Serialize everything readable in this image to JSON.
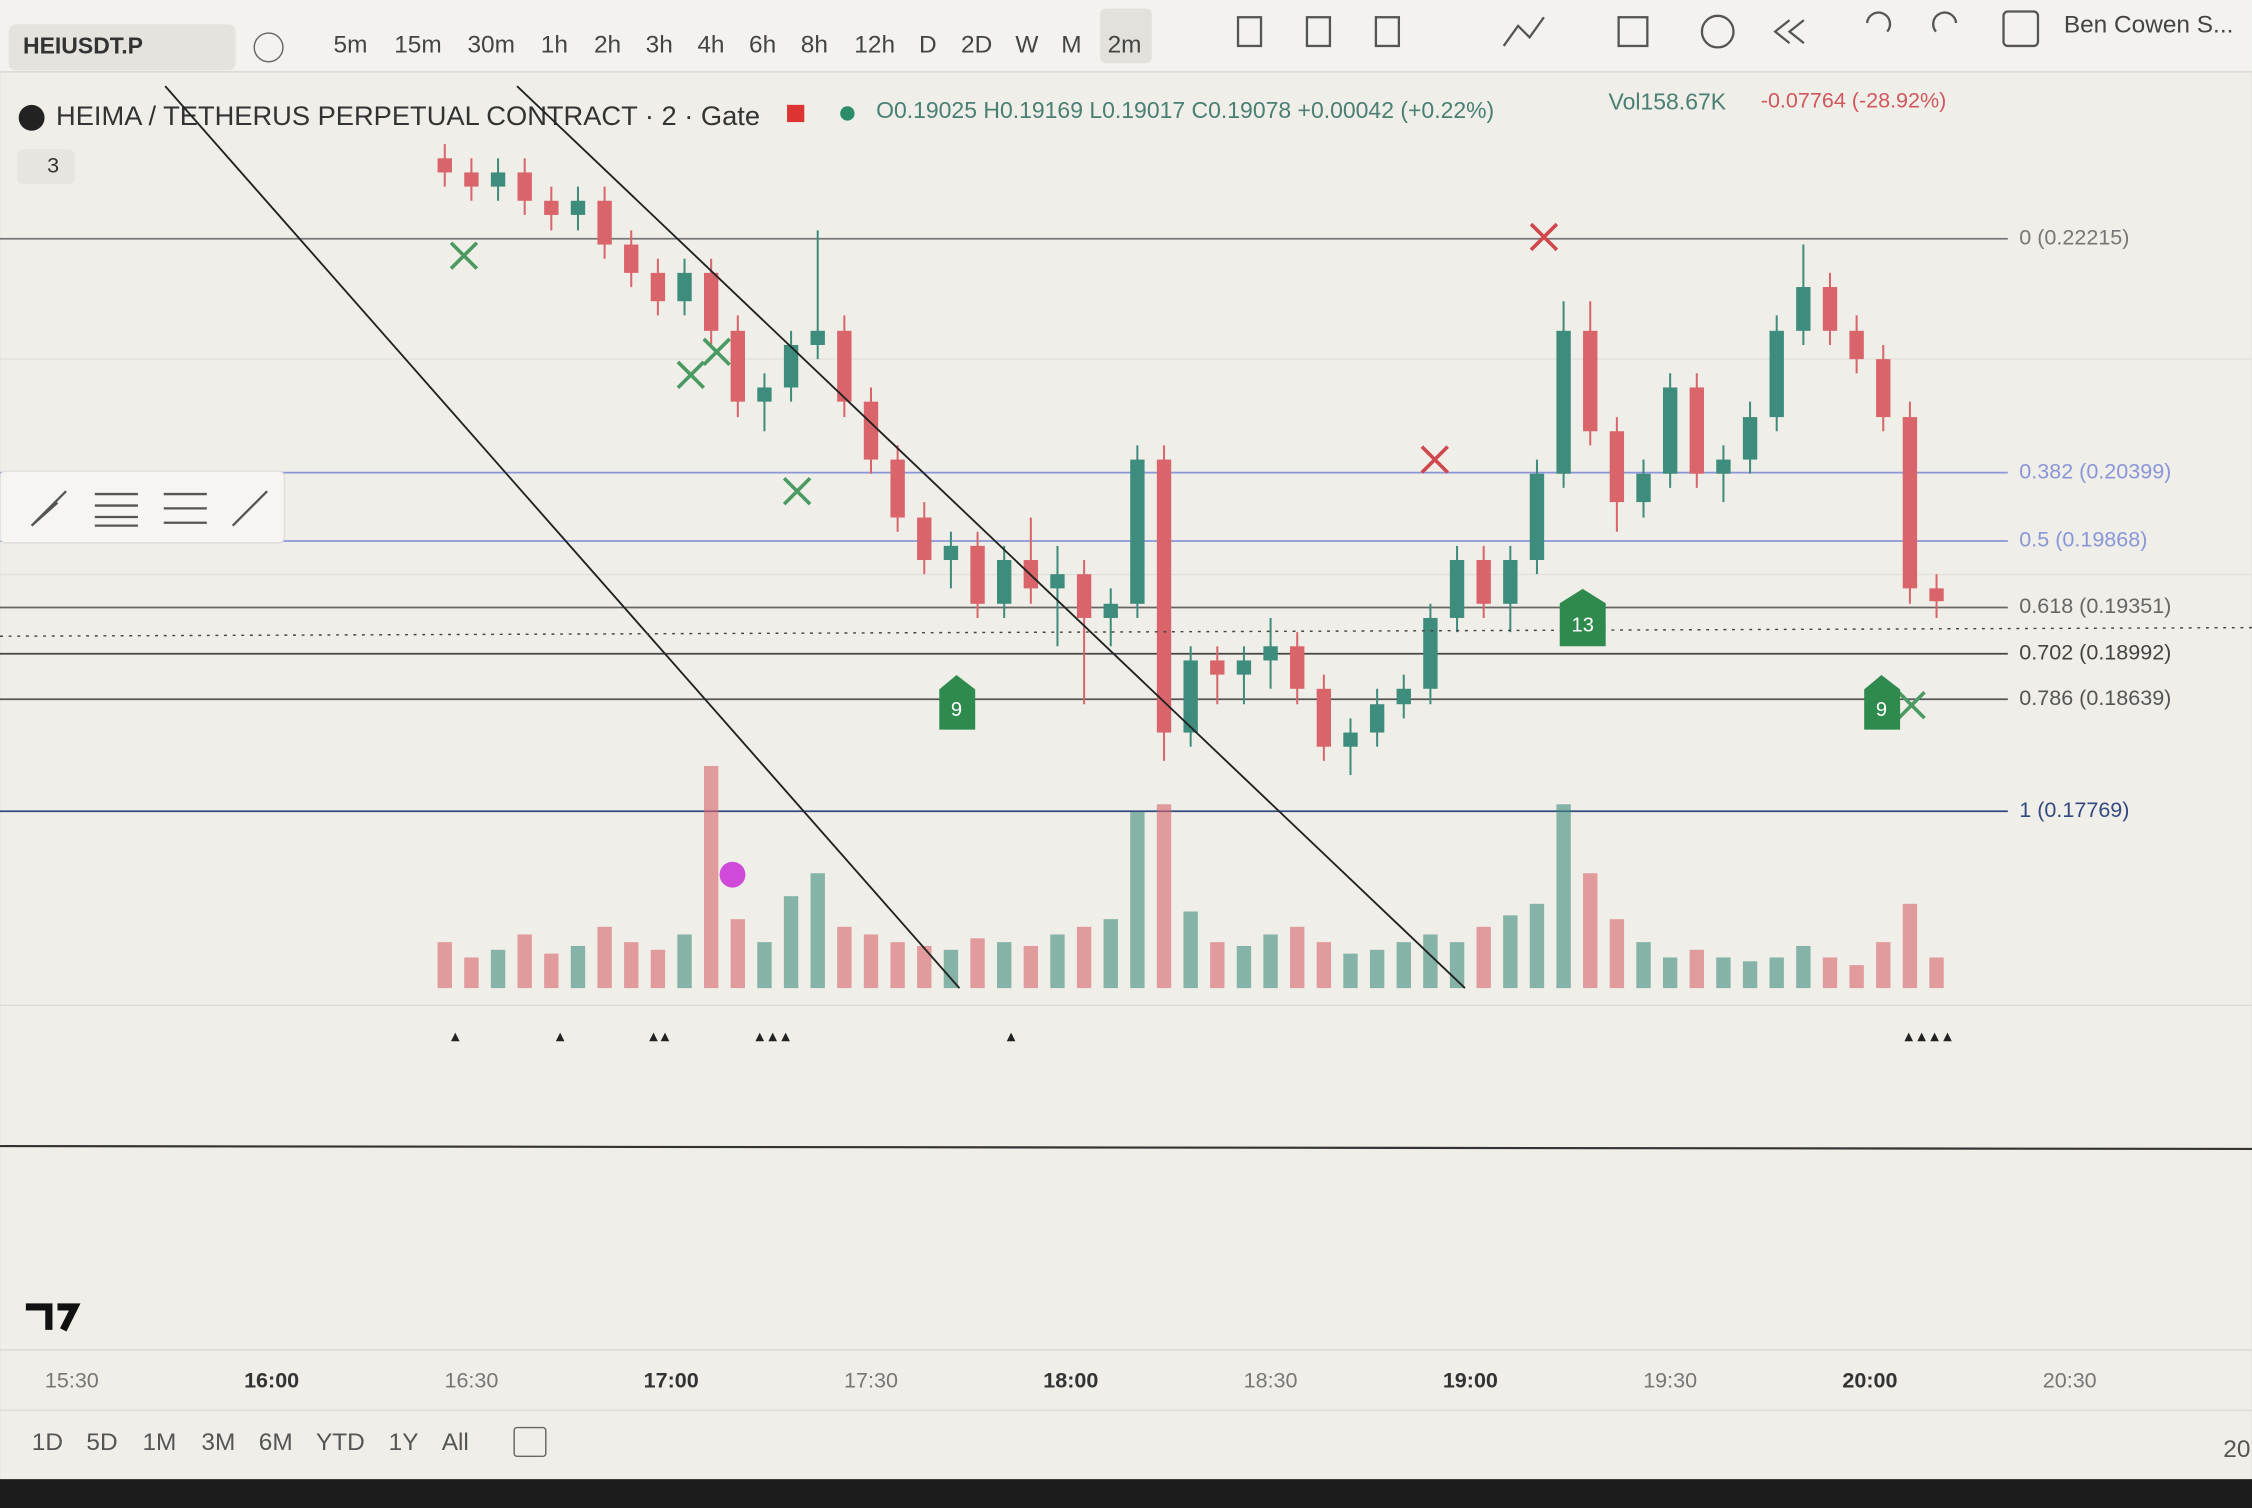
{
  "toolbar": {
    "symbol": "HEIUSDT.P",
    "intervals": [
      "5m",
      "15m",
      "30m",
      "1h",
      "2h",
      "3h",
      "4h",
      "6h",
      "8h",
      "12h",
      "D",
      "2D",
      "W",
      "M",
      "2m"
    ],
    "user": "Ben Cowen S..."
  },
  "legend": {
    "title": "HEIMA / TETHERUS PERPETUAL CONTRACT · 2 · Gate",
    "ohlc": "O0.19025 H0.19169 L0.19017 C0.19078 +0.00042 (+0.22%)",
    "volume": "Vol158.67K",
    "change": "-0.07764 (-28.92%)",
    "collapsed": "3"
  },
  "markers": [
    "9",
    "13",
    "9"
  ],
  "price_chart": {
    "times": [
      "16:26",
      "16:30",
      "16:34",
      "16:38",
      "16:42",
      "16:46",
      "16:50",
      "16:54",
      "16:58",
      "17:02",
      "17:06",
      "17:10",
      "17:14",
      "17:18",
      "17:22",
      "17:26",
      "17:30",
      "17:34",
      "17:38",
      "17:42",
      "17:46",
      "17:50",
      "17:54",
      "17:58",
      "18:02",
      "18:06",
      "18:10",
      "18:14",
      "18:18",
      "18:22",
      "18:26",
      "18:30",
      "18:34",
      "18:38",
      "18:42",
      "18:46",
      "18:50",
      "18:54",
      "18:58",
      "19:02",
      "19:06",
      "19:10",
      "19:14",
      "19:18",
      "19:22",
      "19:26",
      "19:30",
      "19:34",
      "19:38",
      "19:42",
      "19:46",
      "19:50",
      "19:54",
      "19:58",
      "20:02",
      "20:06",
      "20:10"
    ],
    "open": [
      0.2284,
      0.2273,
      0.2262,
      0.2273,
      0.2251,
      0.224,
      0.2251,
      0.2217,
      0.2195,
      0.2173,
      0.2195,
      0.215,
      0.2095,
      0.2106,
      0.2139,
      0.215,
      0.2095,
      0.205,
      0.2005,
      0.1972,
      0.1983,
      0.1938,
      0.1972,
      0.195,
      0.1961,
      0.1927,
      0.1938,
      0.205,
      0.1838,
      0.1894,
      0.1883,
      0.1894,
      0.1905,
      0.1872,
      0.1827,
      0.1838,
      0.186,
      0.1872,
      0.1927,
      0.1972,
      0.1938,
      0.1972,
      0.2039,
      0.215,
      0.2072,
      0.2017,
      0.2039,
      0.2106,
      0.2039,
      0.205,
      0.2083,
      0.215,
      0.2184,
      0.215,
      0.2128,
      0.2083,
      0.195
    ],
    "high": [
      0.2295,
      0.2284,
      0.2284,
      0.2284,
      0.2262,
      0.2262,
      0.2262,
      0.2228,
      0.2206,
      0.2206,
      0.2206,
      0.2162,
      0.2117,
      0.215,
      0.2228,
      0.2162,
      0.2106,
      0.2061,
      0.2017,
      0.1994,
      0.1994,
      0.1983,
      0.2005,
      0.1983,
      0.1972,
      0.195,
      0.2061,
      0.2061,
      0.1905,
      0.1905,
      0.1905,
      0.1927,
      0.1916,
      0.1883,
      0.1849,
      0.1872,
      0.1883,
      0.1938,
      0.1983,
      0.1983,
      0.1983,
      0.205,
      0.2173,
      0.2173,
      0.2083,
      0.205,
      0.2117,
      0.2117,
      0.2061,
      0.2095,
      0.2162,
      0.2217,
      0.2195,
      0.2162,
      0.2139,
      0.2095,
      0.1961
    ],
    "low": [
      0.2262,
      0.2251,
      0.2251,
      0.224,
      0.2228,
      0.2228,
      0.2206,
      0.2184,
      0.2162,
      0.2162,
      0.2139,
      0.2083,
      0.2072,
      0.2095,
      0.2128,
      0.2083,
      0.2039,
      0.1994,
      0.1961,
      0.195,
      0.1927,
      0.1927,
      0.1938,
      0.1905,
      0.186,
      0.1905,
      0.1927,
      0.1816,
      0.1827,
      0.186,
      0.186,
      0.1872,
      0.186,
      0.1816,
      0.1805,
      0.1827,
      0.1849,
      0.186,
      0.1916,
      0.1927,
      0.1916,
      0.1961,
      0.2028,
      0.2061,
      0.1994,
      0.2005,
      0.2028,
      0.2028,
      0.2017,
      0.2039,
      0.2072,
      0.2139,
      0.2139,
      0.2117,
      0.2072,
      0.1938,
      0.1927
    ],
    "close": [
      0.2273,
      0.2262,
      0.2273,
      0.2251,
      0.224,
      0.2251,
      0.2217,
      0.2195,
      0.2173,
      0.2195,
      0.215,
      0.2095,
      0.2106,
      0.2139,
      0.215,
      0.2095,
      0.205,
      0.2005,
      0.1972,
      0.1983,
      0.1938,
      0.1972,
      0.195,
      0.1961,
      0.1927,
      0.1938,
      0.205,
      0.1838,
      0.1894,
      0.1883,
      0.1894,
      0.1905,
      0.1872,
      0.1827,
      0.1838,
      0.186,
      0.1872,
      0.1927,
      0.1972,
      0.1938,
      0.1972,
      0.2039,
      0.215,
      0.2072,
      0.2017,
      0.2039,
      0.2106,
      0.2039,
      0.205,
      0.2083,
      0.215,
      0.2184,
      0.215,
      0.2128,
      0.2083,
      0.195,
      0.194
    ],
    "volume": [
      60,
      40,
      50,
      70,
      45,
      55,
      80,
      60,
      50,
      70,
      290,
      90,
      60,
      120,
      150,
      80,
      70,
      60,
      55,
      50,
      65,
      60,
      55,
      70,
      80,
      90,
      230,
      240,
      100,
      60,
      55,
      70,
      80,
      60,
      45,
      50,
      60,
      70,
      60,
      80,
      95,
      110,
      240,
      150,
      90,
      60,
      40,
      50,
      40,
      35,
      40,
      55,
      40,
      30,
      60,
      110,
      40
    ],
    "ylim": [
      0.176,
      0.234
    ],
    "volume_ylim": [
      0,
      300
    ],
    "up_color": "#3d8c7c",
    "down_color": "#d9646a",
    "fib_levels": [
      {
        "value": 0.22215,
        "label": "0 (0.22215)"
      },
      {
        "value": 0.20399,
        "label": "0.382 (0.20399)"
      },
      {
        "value": 0.19868,
        "label": "0.5 (0.19868)"
      },
      {
        "value": 0.19351,
        "label": "0.618 (0.19351)"
      },
      {
        "value": 0.18992,
        "label": "0.702 (0.18992)"
      },
      {
        "value": 0.18639,
        "label": "0.786 (0.18639)"
      },
      {
        "value": 0.17769,
        "label": "1 (0.17769)"
      }
    ]
  },
  "time_axis": [
    "15:30",
    "16:00",
    "16:30",
    "17:00",
    "17:30",
    "18:00",
    "18:30",
    "19:00",
    "19:30",
    "20:00",
    "20:30"
  ],
  "range_buttons": [
    "1D",
    "5D",
    "1M",
    "3M",
    "6M",
    "YTD",
    "1Y",
    "All"
  ],
  "corner_label": "20"
}
